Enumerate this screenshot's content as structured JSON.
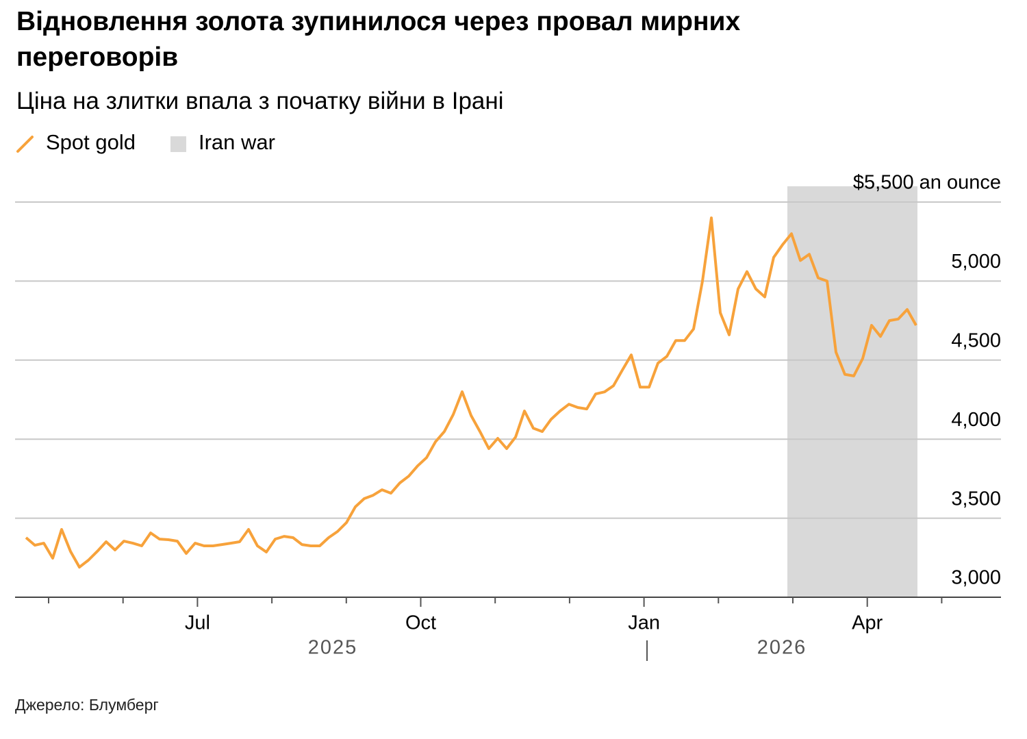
{
  "chart_data": {
    "type": "line",
    "title": "Відновлення золота зупинилося через провал мирних переговорів",
    "subtitle": "Ціна на злитки впала з початку війни в Ірані",
    "source": "Джерело: Блумберг",
    "series": [
      {
        "name": "Spot gold",
        "color": "#f7a23b",
        "values": [
          3377,
          3329,
          3342,
          3247,
          3429,
          3290,
          3190,
          3234,
          3290,
          3351,
          3299,
          3355,
          3342,
          3325,
          3407,
          3368,
          3364,
          3355,
          3277,
          3342,
          3325,
          3325,
          3333,
          3342,
          3351,
          3429,
          3325,
          3286,
          3368,
          3385,
          3377,
          3333,
          3325,
          3325,
          3377,
          3416,
          3472,
          3572,
          3624,
          3645,
          3680,
          3658,
          3723,
          3766,
          3831,
          3883,
          3983,
          4048,
          4156,
          4300,
          4150,
          4048,
          3940,
          4005,
          3940,
          4013,
          4178,
          4069,
          4048,
          4126,
          4178,
          4221,
          4200,
          4191,
          4286,
          4299,
          4338,
          4437,
          4533,
          4329,
          4329,
          4481,
          4524,
          4624,
          4624,
          4697,
          5000,
          5400,
          4800,
          4660,
          4950,
          5060,
          4950,
          4900,
          5150,
          5230,
          5300,
          5130,
          5170,
          5020,
          5000,
          4550,
          4410,
          4400,
          4510,
          4720,
          4650,
          4750,
          4760,
          4820,
          4720
        ]
      }
    ],
    "shade": {
      "name": "Iran war",
      "color": "#d9d9d9"
    },
    "ylim": [
      3000,
      5500
    ],
    "yticks": [
      {
        "value": 3000,
        "label": "3,000"
      },
      {
        "value": 3500,
        "label": "3,500"
      },
      {
        "value": 4000,
        "label": "4,000"
      },
      {
        "value": 4500,
        "label": "4,500"
      },
      {
        "value": 5000,
        "label": "5,000"
      },
      {
        "value": 5500,
        "label": "$5,500 an ounce"
      }
    ],
    "xticks": [
      {
        "value": "2025-05",
        "label": null
      },
      {
        "value": "2025-06",
        "label": null
      },
      {
        "value": "2025-07",
        "label": "Jul"
      },
      {
        "value": "2025-08",
        "label": null
      },
      {
        "value": "2025-09",
        "label": null
      },
      {
        "value": "2025-10",
        "label": "Oct"
      },
      {
        "value": "2025-11",
        "label": null
      },
      {
        "value": "2025-12",
        "label": null
      },
      {
        "value": "2026-01",
        "label": "Jan"
      },
      {
        "value": "2026-02",
        "label": null
      },
      {
        "value": "2026-03",
        "label": null
      },
      {
        "value": "2026-04",
        "label": "Apr"
      },
      {
        "value": "2026-05",
        "label": null
      }
    ],
    "years": [
      "2025",
      "2026"
    ],
    "grid": true
  }
}
